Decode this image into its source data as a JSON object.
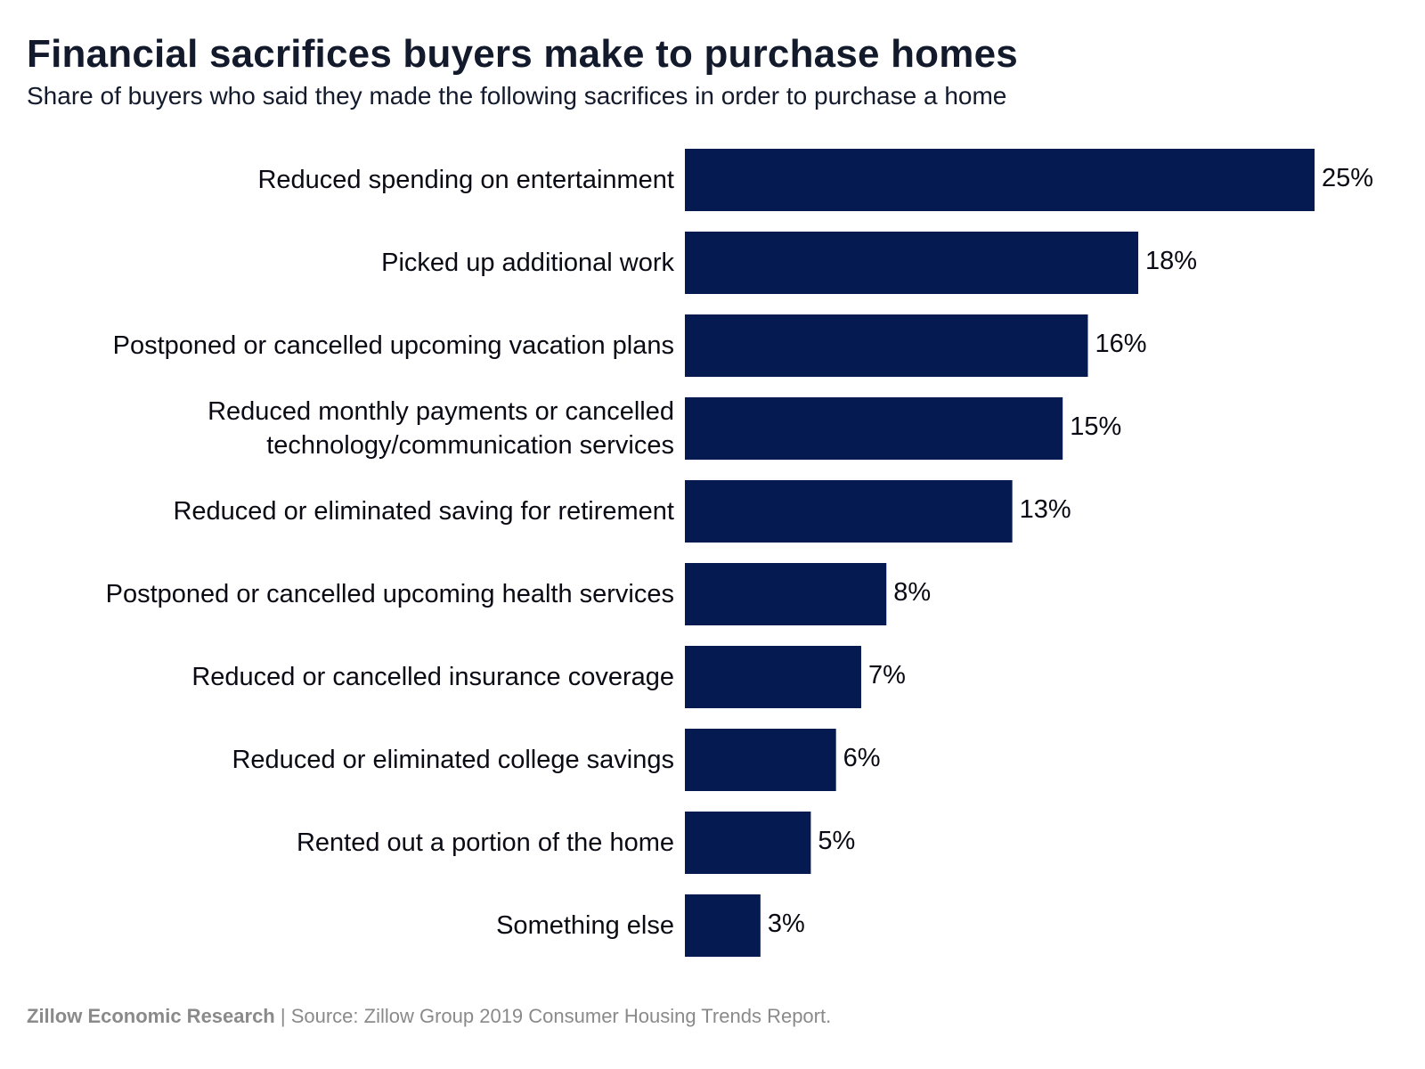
{
  "chart_data": {
    "type": "bar",
    "orientation": "horizontal",
    "title": "Financial sacrifices buyers make to purchase homes",
    "subtitle": "Share of buyers who said they made the following sacrifices in order to purchase a home",
    "categories": [
      "Reduced spending on entertainment",
      "Picked up additional work",
      "Postponed or cancelled upcoming vacation plans",
      "Reduced monthly payments or cancelled technology/communication services",
      "Reduced or eliminated saving for retirement",
      "Postponed or cancelled upcoming health services",
      "Reduced or cancelled insurance coverage",
      "Reduced or eliminated college savings",
      "Rented out a portion of the home",
      "Something else"
    ],
    "category_lines": [
      [
        "Reduced spending on entertainment"
      ],
      [
        "Picked up additional work"
      ],
      [
        "Postponed or cancelled upcoming vacation plans"
      ],
      [
        "Reduced monthly payments or cancelled",
        "technology/communication services"
      ],
      [
        "Reduced or eliminated saving for retirement"
      ],
      [
        "Postponed or cancelled upcoming health services"
      ],
      [
        "Reduced or cancelled insurance coverage"
      ],
      [
        "Reduced or eliminated college savings"
      ],
      [
        "Rented out a portion of the home"
      ],
      [
        "Something else"
      ]
    ],
    "values": [
      25,
      18,
      16,
      15,
      13,
      8,
      7,
      6,
      5,
      3
    ],
    "value_labels": [
      "25%",
      "18%",
      "16%",
      "15%",
      "13%",
      "8%",
      "7%",
      "6%",
      "5%",
      "3%"
    ],
    "xlim": [
      0,
      25
    ],
    "grid": false,
    "bar_color": "#041a51"
  },
  "footer": {
    "org": "Zillow Economic Research",
    "separator": " | ",
    "source": "Source: Zillow Group 2019 Consumer Housing Trends Report."
  }
}
